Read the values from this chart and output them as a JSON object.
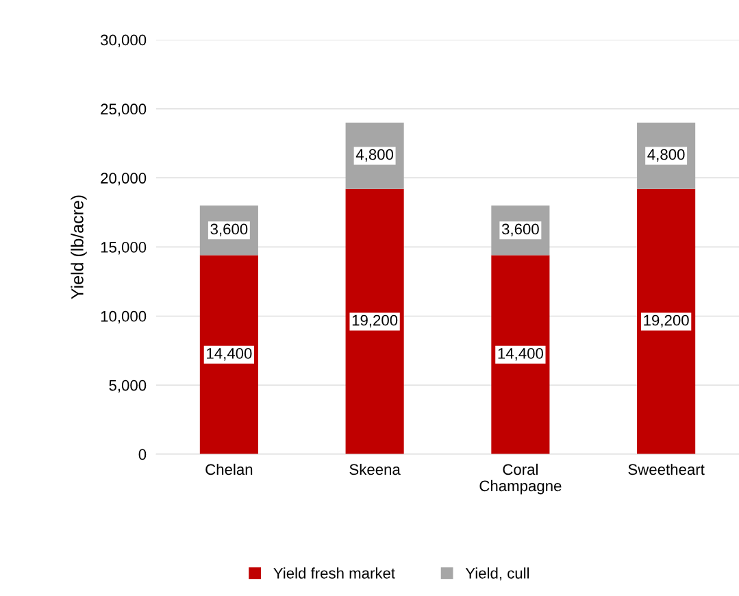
{
  "chart_data": {
    "type": "bar",
    "stacked": true,
    "ylabel": "Yield (lb/acre)",
    "categories": [
      "Chelan",
      "Skeena",
      "Coral\nChampagne",
      "Sweetheart"
    ],
    "series": [
      {
        "name": "Yield fresh market",
        "color": "#c00000",
        "values": [
          14400,
          19200,
          14400,
          19200
        ],
        "value_labels": [
          "14,400",
          "19,200",
          "14,400",
          "19,200"
        ]
      },
      {
        "name": "Yield, cull",
        "color": "#a6a6a6",
        "values": [
          3600,
          4800,
          3600,
          4800
        ],
        "value_labels": [
          "3,600",
          "4,800",
          "3,600",
          "4,800"
        ]
      }
    ],
    "ylim": [
      0,
      30000
    ],
    "yticks": [
      {
        "value": 0,
        "label": "0"
      },
      {
        "value": 5000,
        "label": "5,000"
      },
      {
        "value": 10000,
        "label": "10,000"
      },
      {
        "value": 15000,
        "label": "15,000"
      },
      {
        "value": 20000,
        "label": "20,000"
      },
      {
        "value": 25000,
        "label": "25,000"
      },
      {
        "value": 30000,
        "label": "30,000"
      }
    ],
    "grid": "y",
    "legend": "bottom"
  }
}
